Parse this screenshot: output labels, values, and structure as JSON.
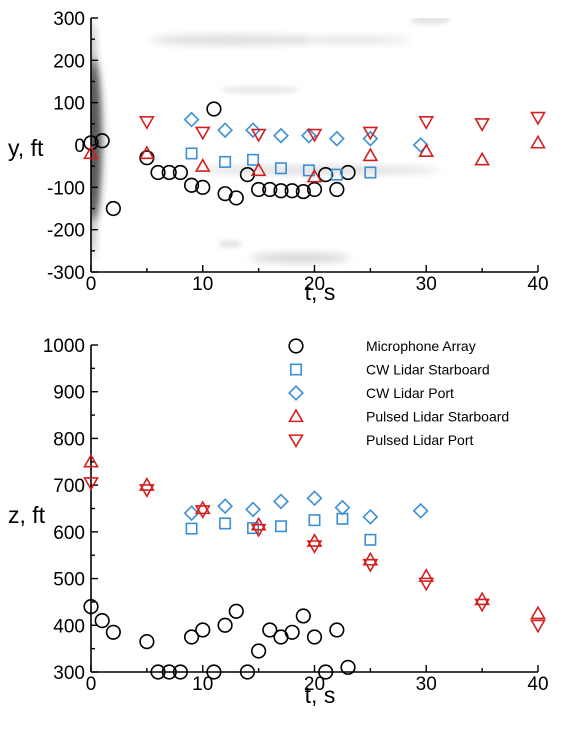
{
  "chart_data": [
    {
      "type": "scatter",
      "xlabel": "t, s",
      "ylabel": "y, ft",
      "xlim": [
        0,
        40
      ],
      "ylim": [
        -300,
        300
      ],
      "xticks": [
        0,
        10,
        20,
        30,
        40
      ],
      "yticks": [
        300,
        200,
        100,
        0,
        -100,
        -200,
        -300
      ],
      "background": "grayscale wake contours",
      "series": [
        {
          "name": "Microphone Array",
          "marker": "circle",
          "color": "#000000",
          "x": [
            0,
            1,
            2,
            5,
            6,
            7,
            8,
            9,
            10,
            11,
            12,
            13,
            14,
            15,
            16,
            17,
            18,
            19,
            20,
            21,
            22,
            23
          ],
          "y": [
            5,
            10,
            -150,
            -30,
            -65,
            -65,
            -65,
            -95,
            -100,
            85,
            -115,
            -125,
            -70,
            -105,
            -105,
            -108,
            -108,
            -110,
            -105,
            -70,
            -105,
            -65
          ]
        },
        {
          "name": "CW Lidar Starboard",
          "marker": "square",
          "color": "#3a8fd6",
          "x": [
            9,
            12,
            14.5,
            17,
            19.5,
            22,
            25
          ],
          "y": [
            -20,
            -40,
            -35,
            -55,
            -60,
            -70,
            -65
          ]
        },
        {
          "name": "CW Lidar Port",
          "marker": "diamond",
          "color": "#3a8fd6",
          "x": [
            9,
            12,
            14.5,
            17,
            19.5,
            22,
            25,
            29.5
          ],
          "y": [
            60,
            35,
            35,
            22,
            22,
            15,
            15,
            0
          ]
        },
        {
          "name": "Pulsed Lidar Starboard",
          "marker": "triangle-up",
          "color": "#d22020",
          "x": [
            0,
            5,
            10,
            15,
            20,
            25,
            30,
            35,
            40
          ],
          "y": [
            -20,
            -20,
            -50,
            -60,
            -75,
            -25,
            -15,
            -35,
            5
          ]
        },
        {
          "name": "Pulsed Lidar Port",
          "marker": "triangle-down",
          "color": "#d22020",
          "x": [
            5,
            10,
            15,
            20,
            25,
            30,
            35,
            40
          ],
          "y": [
            55,
            30,
            25,
            25,
            30,
            55,
            50,
            65
          ]
        }
      ]
    },
    {
      "type": "scatter",
      "xlabel": "t, s",
      "ylabel": "z, ft",
      "xlim": [
        0,
        40
      ],
      "ylim": [
        300,
        1000
      ],
      "xticks": [
        0,
        10,
        20,
        30,
        40
      ],
      "yticks": [
        1000,
        900,
        800,
        700,
        600,
        500,
        400,
        300
      ],
      "legend_position": "top-right",
      "series": [
        {
          "name": "Microphone Array",
          "marker": "circle",
          "color": "#000000",
          "x": [
            0,
            1,
            2,
            5,
            6,
            7,
            8,
            9,
            10,
            11,
            12,
            13,
            14,
            15,
            16,
            17,
            18,
            19,
            20,
            21,
            22,
            23
          ],
          "y": [
            440,
            410,
            385,
            365,
            300,
            300,
            300,
            375,
            390,
            300,
            400,
            430,
            300,
            345,
            390,
            375,
            385,
            420,
            375,
            300,
            390,
            310
          ]
        },
        {
          "name": "CW Lidar Starboard",
          "marker": "square",
          "color": "#3a8fd6",
          "x": [
            9,
            12,
            14.5,
            17,
            20,
            22.5,
            25
          ],
          "y": [
            607,
            618,
            608,
            612,
            625,
            628,
            583
          ]
        },
        {
          "name": "CW Lidar Port",
          "marker": "diamond",
          "color": "#3a8fd6",
          "x": [
            9,
            12,
            14.5,
            17,
            20,
            22.5,
            25,
            29.5
          ],
          "y": [
            640,
            655,
            648,
            665,
            672,
            652,
            632,
            645
          ]
        },
        {
          "name": "Pulsed Lidar Starboard",
          "marker": "triangle-up",
          "color": "#d22020",
          "x": [
            0,
            5,
            10,
            15,
            20,
            25,
            30,
            35,
            40
          ],
          "y": [
            750,
            700,
            650,
            615,
            580,
            540,
            505,
            455,
            425
          ]
        },
        {
          "name": "Pulsed Lidar Port",
          "marker": "triangle-down",
          "color": "#d22020",
          "x": [
            0,
            5,
            10,
            15,
            20,
            25,
            30,
            35,
            40
          ],
          "y": [
            705,
            690,
            645,
            605,
            570,
            530,
            490,
            445,
            400
          ]
        }
      ]
    }
  ]
}
